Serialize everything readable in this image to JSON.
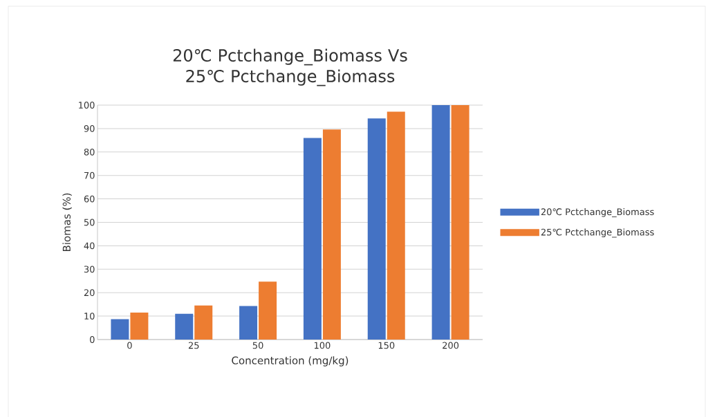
{
  "chart_data": {
    "type": "bar",
    "title": "20℃ Pctchange_Biomass Vs 25℃ Pctchange_Biomass",
    "xlabel": "Concentration (mg/kg)",
    "ylabel": "Biomas (%)",
    "categories": [
      "0",
      "25",
      "50",
      "100",
      "150",
      "200"
    ],
    "series": [
      {
        "name": "20℃ Pctchange_Biomass",
        "color": "#4472c4",
        "values": [
          8.7,
          11.0,
          14.3,
          86.0,
          94.3,
          100
        ]
      },
      {
        "name": "25℃ Pctchange_Biomass",
        "color": "#ed7d31",
        "values": [
          11.5,
          14.5,
          24.7,
          89.6,
          97.2,
          100
        ]
      }
    ],
    "ylim": [
      0,
      100
    ],
    "yticks": [
      0,
      10,
      20,
      30,
      40,
      50,
      60,
      70,
      80,
      90,
      100
    ],
    "grid": "y",
    "legend": "right"
  }
}
